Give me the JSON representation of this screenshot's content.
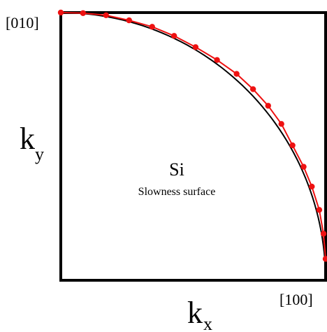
{
  "chart_data": {
    "type": "line",
    "title": "Si",
    "subtitle": "Slowness surface",
    "xlabel": "k",
    "xlabel_sub": "x",
    "ylabel": "k",
    "ylabel_sub": "y",
    "x_end_label": "[100]",
    "y_end_label": "[010]",
    "xlim": [
      0,
      1
    ],
    "ylim": [
      0,
      1
    ],
    "grid": false,
    "series": [
      {
        "style": "black-line",
        "color": "#000000",
        "x": [
          0,
          0.0262,
          0.0523,
          0.0785,
          0.1045,
          0.1305,
          0.1564,
          0.1822,
          0.2079,
          0.2334,
          0.2588,
          0.284,
          0.309,
          0.3338,
          0.3584,
          0.3827,
          0.4067,
          0.4305,
          0.454,
          0.4772,
          0.5,
          0.5225,
          0.5446,
          0.5664,
          0.5878,
          0.6088,
          0.6293,
          0.6494,
          0.6691,
          0.6884,
          0.7071,
          0.7254,
          0.7431,
          0.7604,
          0.7771,
          0.7934,
          0.809,
          0.8241,
          0.8387,
          0.8526,
          0.866,
          0.8788,
          0.891,
          0.9026,
          0.9135,
          0.9239,
          0.9336,
          0.9426,
          0.9511,
          0.9588,
          0.9659,
          0.9724,
          0.9781,
          0.9833,
          0.9877,
          0.9914,
          0.9945,
          0.9969,
          0.9986,
          0.9997,
          1
        ],
        "y": [
          1,
          0.9997,
          0.9986,
          0.9969,
          0.9945,
          0.9914,
          0.9877,
          0.9833,
          0.9781,
          0.9724,
          0.9659,
          0.9588,
          0.9511,
          0.9426,
          0.9336,
          0.9239,
          0.9135,
          0.9026,
          0.891,
          0.8788,
          0.866,
          0.8526,
          0.8387,
          0.8241,
          0.809,
          0.7934,
          0.7771,
          0.7604,
          0.7431,
          0.7254,
          0.7071,
          0.6884,
          0.6691,
          0.6494,
          0.6293,
          0.6088,
          0.5878,
          0.5664,
          0.5446,
          0.5225,
          0.5,
          0.4772,
          0.454,
          0.4305,
          0.4067,
          0.3827,
          0.3584,
          0.3338,
          0.309,
          0.284,
          0.2588,
          0.2334,
          0.2079,
          0.1822,
          0.1564,
          0.1305,
          0.1045,
          0.0785,
          0.0523,
          0.0262,
          0
        ]
      },
      {
        "style": "red-line-markers",
        "color": "#ee1111",
        "x": [
          0,
          0.084,
          0.171,
          0.258,
          0.345,
          0.428,
          0.509,
          0.59,
          0.664,
          0.726,
          0.783,
          0.833,
          0.875,
          0.917,
          0.948,
          0.976,
          0.992,
          1
        ],
        "y": [
          1,
          0.998,
          0.99,
          0.971,
          0.947,
          0.913,
          0.871,
          0.823,
          0.771,
          0.714,
          0.652,
          0.584,
          0.504,
          0.424,
          0.35,
          0.263,
          0.174,
          0.08
        ]
      }
    ]
  }
}
